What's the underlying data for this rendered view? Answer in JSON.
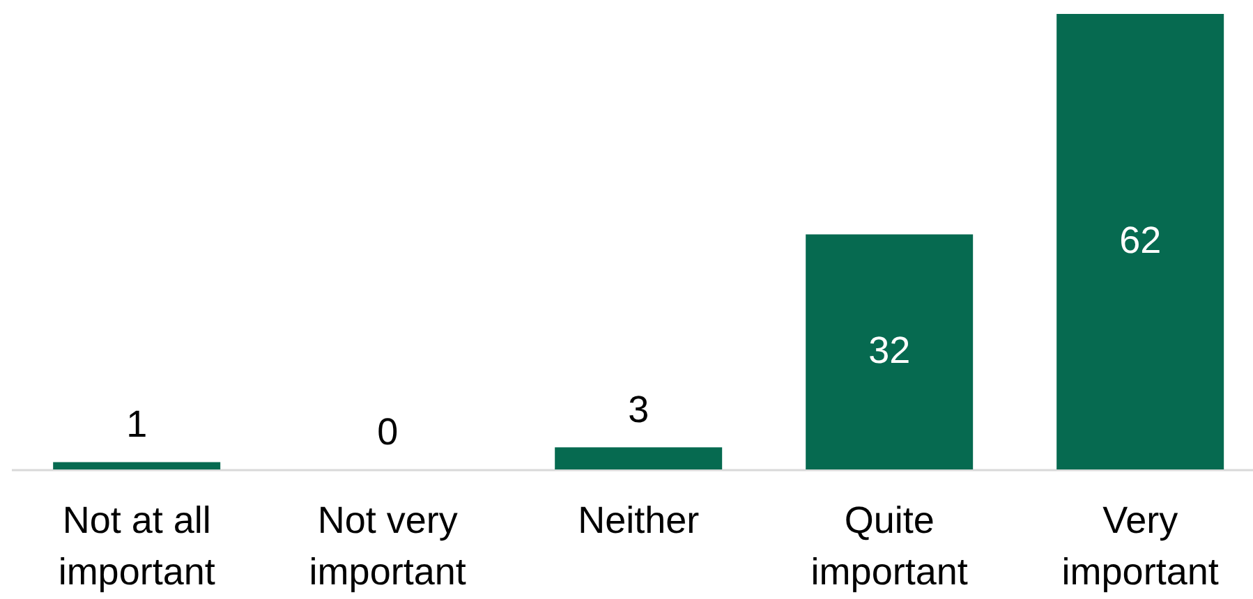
{
  "chart_data": {
    "type": "bar",
    "categories": [
      "Not at all important",
      "Not very important",
      "Neither",
      "Quite important",
      "Very important"
    ],
    "values": [
      1,
      0,
      3,
      32,
      62
    ],
    "color": "#066a50",
    "ylim": [
      0,
      62
    ],
    "data_labels": true,
    "tick_labels": "x"
  }
}
